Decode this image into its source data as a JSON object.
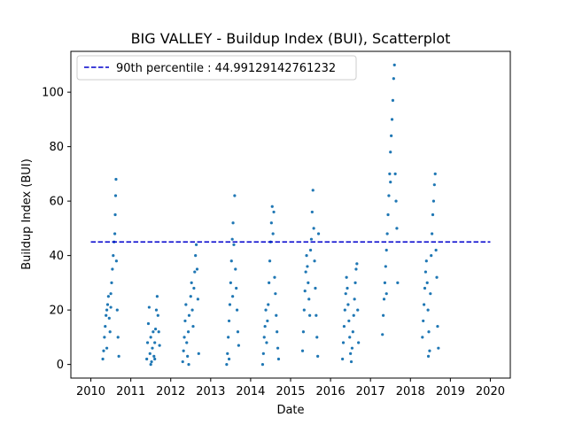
{
  "chart_data": {
    "type": "scatter",
    "title": "BIG VALLEY - Buildup Index (BUI), Scatterplot",
    "xlabel": "Date",
    "ylabel": "Buildup Index (BUI)",
    "xlim": [
      2009.5,
      2020.5
    ],
    "ylim": [
      -5,
      115
    ],
    "x_ticks": [
      2010,
      2011,
      2012,
      2013,
      2014,
      2015,
      2016,
      2017,
      2018,
      2019,
      2020
    ],
    "x_tick_labels": [
      "2010",
      "2011",
      "2012",
      "2013",
      "2014",
      "2015",
      "2016",
      "2017",
      "2018",
      "2019",
      "2020"
    ],
    "y_ticks": [
      0,
      20,
      40,
      60,
      80,
      100
    ],
    "y_tick_labels": [
      "0",
      "20",
      "40",
      "60",
      "80",
      "100"
    ],
    "grid": false,
    "legend_position": "top-left",
    "colors": {
      "points": "#1f77b4",
      "percentile_line": "#0000cc"
    },
    "reference_line": {
      "label": "90th percentile : 44.99129142761232",
      "y": 44.99129142761232,
      "x_start": 2010,
      "x_end": 2020,
      "style": "dashed"
    },
    "series": [
      {
        "points": [
          [
            2010.3,
            2
          ],
          [
            2010.32,
            5
          ],
          [
            2010.34,
            10
          ],
          [
            2010.36,
            14
          ],
          [
            2010.38,
            18
          ],
          [
            2010.4,
            20
          ],
          [
            2010.42,
            22
          ],
          [
            2010.44,
            25
          ],
          [
            2010.46,
            17
          ],
          [
            2010.48,
            12
          ],
          [
            2010.5,
            21
          ],
          [
            2010.52,
            30
          ],
          [
            2010.54,
            35
          ],
          [
            2010.56,
            40
          ],
          [
            2010.58,
            45
          ],
          [
            2010.6,
            48
          ],
          [
            2010.61,
            55
          ],
          [
            2010.62,
            62
          ],
          [
            2010.63,
            68
          ],
          [
            2010.64,
            38
          ],
          [
            2010.66,
            20
          ],
          [
            2010.68,
            10
          ],
          [
            2010.7,
            3
          ],
          [
            2010.4,
            6
          ],
          [
            2010.5,
            26
          ],
          [
            2011.4,
            2
          ],
          [
            2011.42,
            8
          ],
          [
            2011.44,
            15
          ],
          [
            2011.46,
            21
          ],
          [
            2011.48,
            4
          ],
          [
            2011.5,
            10
          ],
          [
            2011.52,
            1
          ],
          [
            2011.54,
            6
          ],
          [
            2011.56,
            12
          ],
          [
            2011.58,
            3
          ],
          [
            2011.6,
            8
          ],
          [
            2011.62,
            13
          ],
          [
            2011.64,
            20
          ],
          [
            2011.66,
            25
          ],
          [
            2011.68,
            18
          ],
          [
            2011.7,
            12
          ],
          [
            2011.72,
            7
          ],
          [
            2011.5,
            0
          ],
          [
            2011.6,
            2
          ],
          [
            2012.3,
            1
          ],
          [
            2012.32,
            5
          ],
          [
            2012.34,
            10
          ],
          [
            2012.36,
            16
          ],
          [
            2012.38,
            22
          ],
          [
            2012.4,
            8
          ],
          [
            2012.42,
            3
          ],
          [
            2012.44,
            12
          ],
          [
            2012.46,
            18
          ],
          [
            2012.5,
            25
          ],
          [
            2012.52,
            30
          ],
          [
            2012.54,
            20
          ],
          [
            2012.56,
            14
          ],
          [
            2012.58,
            28
          ],
          [
            2012.6,
            34
          ],
          [
            2012.62,
            40
          ],
          [
            2012.64,
            44
          ],
          [
            2012.66,
            35
          ],
          [
            2012.68,
            24
          ],
          [
            2012.7,
            4
          ],
          [
            2012.45,
            0
          ],
          [
            2013.4,
            0
          ],
          [
            2013.42,
            4
          ],
          [
            2013.44,
            10
          ],
          [
            2013.46,
            16
          ],
          [
            2013.48,
            22
          ],
          [
            2013.5,
            30
          ],
          [
            2013.52,
            38
          ],
          [
            2013.54,
            46
          ],
          [
            2013.56,
            52
          ],
          [
            2013.58,
            44
          ],
          [
            2013.6,
            62
          ],
          [
            2013.62,
            35
          ],
          [
            2013.64,
            28
          ],
          [
            2013.66,
            20
          ],
          [
            2013.68,
            12
          ],
          [
            2013.7,
            7
          ],
          [
            2013.46,
            2
          ],
          [
            2013.55,
            25
          ],
          [
            2014.3,
            0
          ],
          [
            2014.32,
            4
          ],
          [
            2014.34,
            10
          ],
          [
            2014.36,
            14
          ],
          [
            2014.38,
            20
          ],
          [
            2014.4,
            8
          ],
          [
            2014.42,
            16
          ],
          [
            2014.44,
            22
          ],
          [
            2014.46,
            30
          ],
          [
            2014.48,
            38
          ],
          [
            2014.5,
            45
          ],
          [
            2014.52,
            52
          ],
          [
            2014.54,
            58
          ],
          [
            2014.56,
            48
          ],
          [
            2014.58,
            56
          ],
          [
            2014.6,
            32
          ],
          [
            2014.62,
            26
          ],
          [
            2014.64,
            18
          ],
          [
            2014.66,
            12
          ],
          [
            2014.68,
            6
          ],
          [
            2014.7,
            2
          ],
          [
            2015.3,
            5
          ],
          [
            2015.32,
            12
          ],
          [
            2015.34,
            20
          ],
          [
            2015.36,
            27
          ],
          [
            2015.38,
            34
          ],
          [
            2015.4,
            40
          ],
          [
            2015.42,
            36
          ],
          [
            2015.44,
            30
          ],
          [
            2015.46,
            24
          ],
          [
            2015.48,
            18
          ],
          [
            2015.5,
            42
          ],
          [
            2015.52,
            46
          ],
          [
            2015.54,
            56
          ],
          [
            2015.56,
            64
          ],
          [
            2015.58,
            50
          ],
          [
            2015.6,
            38
          ],
          [
            2015.62,
            28
          ],
          [
            2015.64,
            18
          ],
          [
            2015.66,
            10
          ],
          [
            2015.68,
            3
          ],
          [
            2015.7,
            48
          ],
          [
            2016.3,
            2
          ],
          [
            2016.32,
            8
          ],
          [
            2016.34,
            14
          ],
          [
            2016.36,
            20
          ],
          [
            2016.38,
            26
          ],
          [
            2016.4,
            32
          ],
          [
            2016.42,
            28
          ],
          [
            2016.44,
            22
          ],
          [
            2016.46,
            16
          ],
          [
            2016.48,
            10
          ],
          [
            2016.5,
            4
          ],
          [
            2016.52,
            1
          ],
          [
            2016.54,
            6
          ],
          [
            2016.56,
            12
          ],
          [
            2016.58,
            18
          ],
          [
            2016.6,
            24
          ],
          [
            2016.62,
            30
          ],
          [
            2016.64,
            35
          ],
          [
            2016.66,
            37
          ],
          [
            2016.68,
            20
          ],
          [
            2016.7,
            8
          ],
          [
            2017.3,
            11
          ],
          [
            2017.32,
            18
          ],
          [
            2017.34,
            24
          ],
          [
            2017.36,
            30
          ],
          [
            2017.38,
            36
          ],
          [
            2017.4,
            42
          ],
          [
            2017.42,
            48
          ],
          [
            2017.44,
            55
          ],
          [
            2017.46,
            62
          ],
          [
            2017.48,
            70
          ],
          [
            2017.5,
            78
          ],
          [
            2017.52,
            84
          ],
          [
            2017.54,
            90
          ],
          [
            2017.56,
            97
          ],
          [
            2017.58,
            105
          ],
          [
            2017.6,
            110
          ],
          [
            2017.62,
            70
          ],
          [
            2017.64,
            60
          ],
          [
            2017.66,
            50
          ],
          [
            2017.68,
            30
          ],
          [
            2017.4,
            26
          ],
          [
            2017.5,
            67
          ],
          [
            2018.3,
            10
          ],
          [
            2018.32,
            16
          ],
          [
            2018.34,
            22
          ],
          [
            2018.36,
            28
          ],
          [
            2018.38,
            34
          ],
          [
            2018.4,
            38
          ],
          [
            2018.42,
            30
          ],
          [
            2018.44,
            20
          ],
          [
            2018.46,
            12
          ],
          [
            2018.48,
            5
          ],
          [
            2018.5,
            26
          ],
          [
            2018.52,
            40
          ],
          [
            2018.54,
            48
          ],
          [
            2018.56,
            55
          ],
          [
            2018.58,
            60
          ],
          [
            2018.6,
            66
          ],
          [
            2018.62,
            70
          ],
          [
            2018.64,
            42
          ],
          [
            2018.66,
            32
          ],
          [
            2018.68,
            14
          ],
          [
            2018.7,
            6
          ],
          [
            2018.45,
            3
          ]
        ]
      }
    ]
  }
}
